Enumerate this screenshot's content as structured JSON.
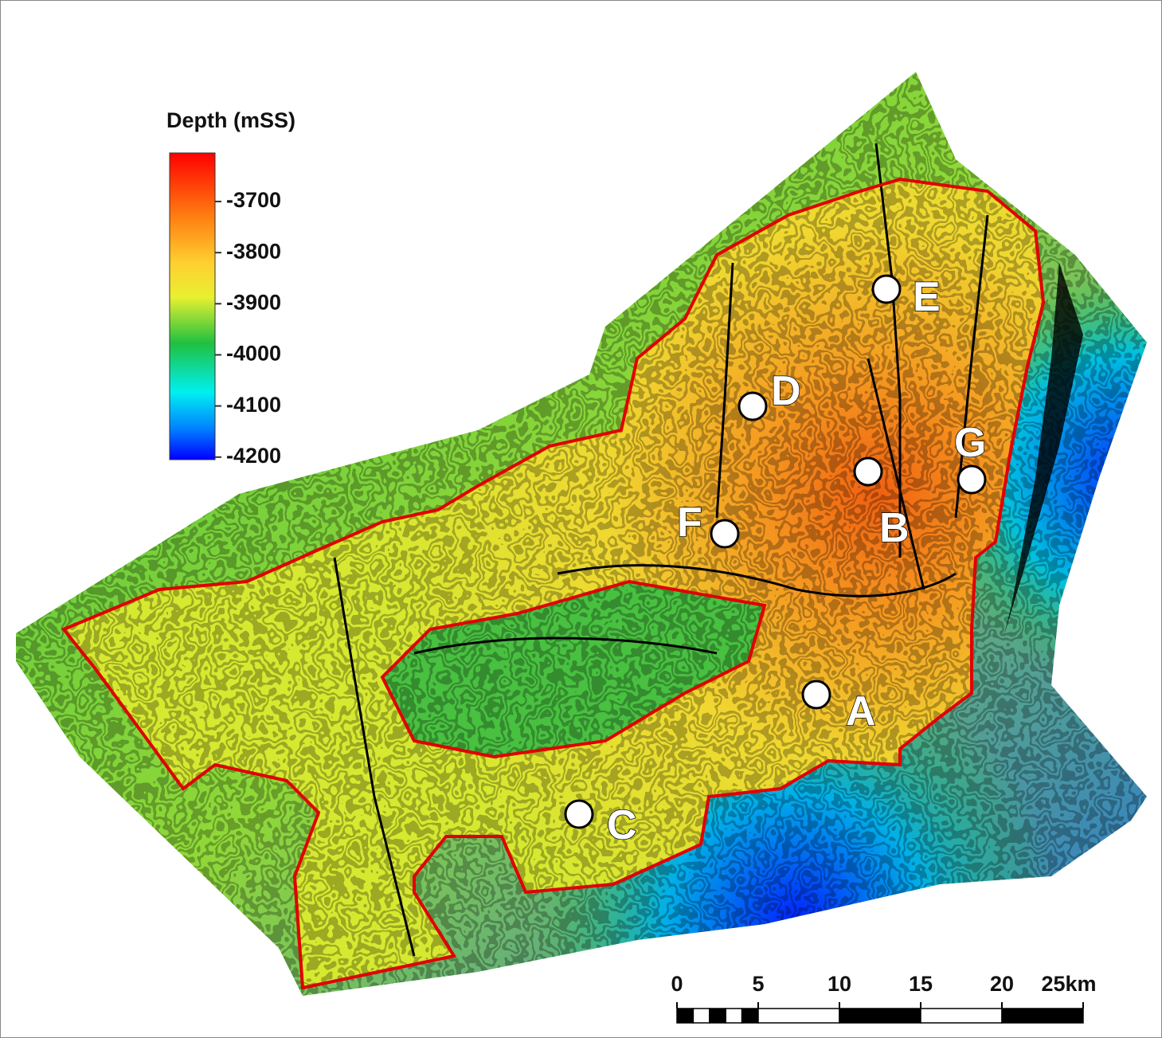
{
  "legend": {
    "title": "Depth (mSS)",
    "clim": [
      -4205,
      -3605
    ],
    "ticks": [
      -3700,
      -3800,
      -3900,
      -4000,
      -4100,
      -4200
    ]
  },
  "wells": [
    {
      "name": "A"
    },
    {
      "name": "B"
    },
    {
      "name": "C"
    },
    {
      "name": "D"
    },
    {
      "name": "E"
    },
    {
      "name": "F"
    },
    {
      "name": "G"
    }
  ],
  "scale_bar": {
    "ticks": [
      0,
      5,
      10,
      15,
      20,
      {
        "value": 25,
        "label": "25km"
      }
    ]
  }
}
